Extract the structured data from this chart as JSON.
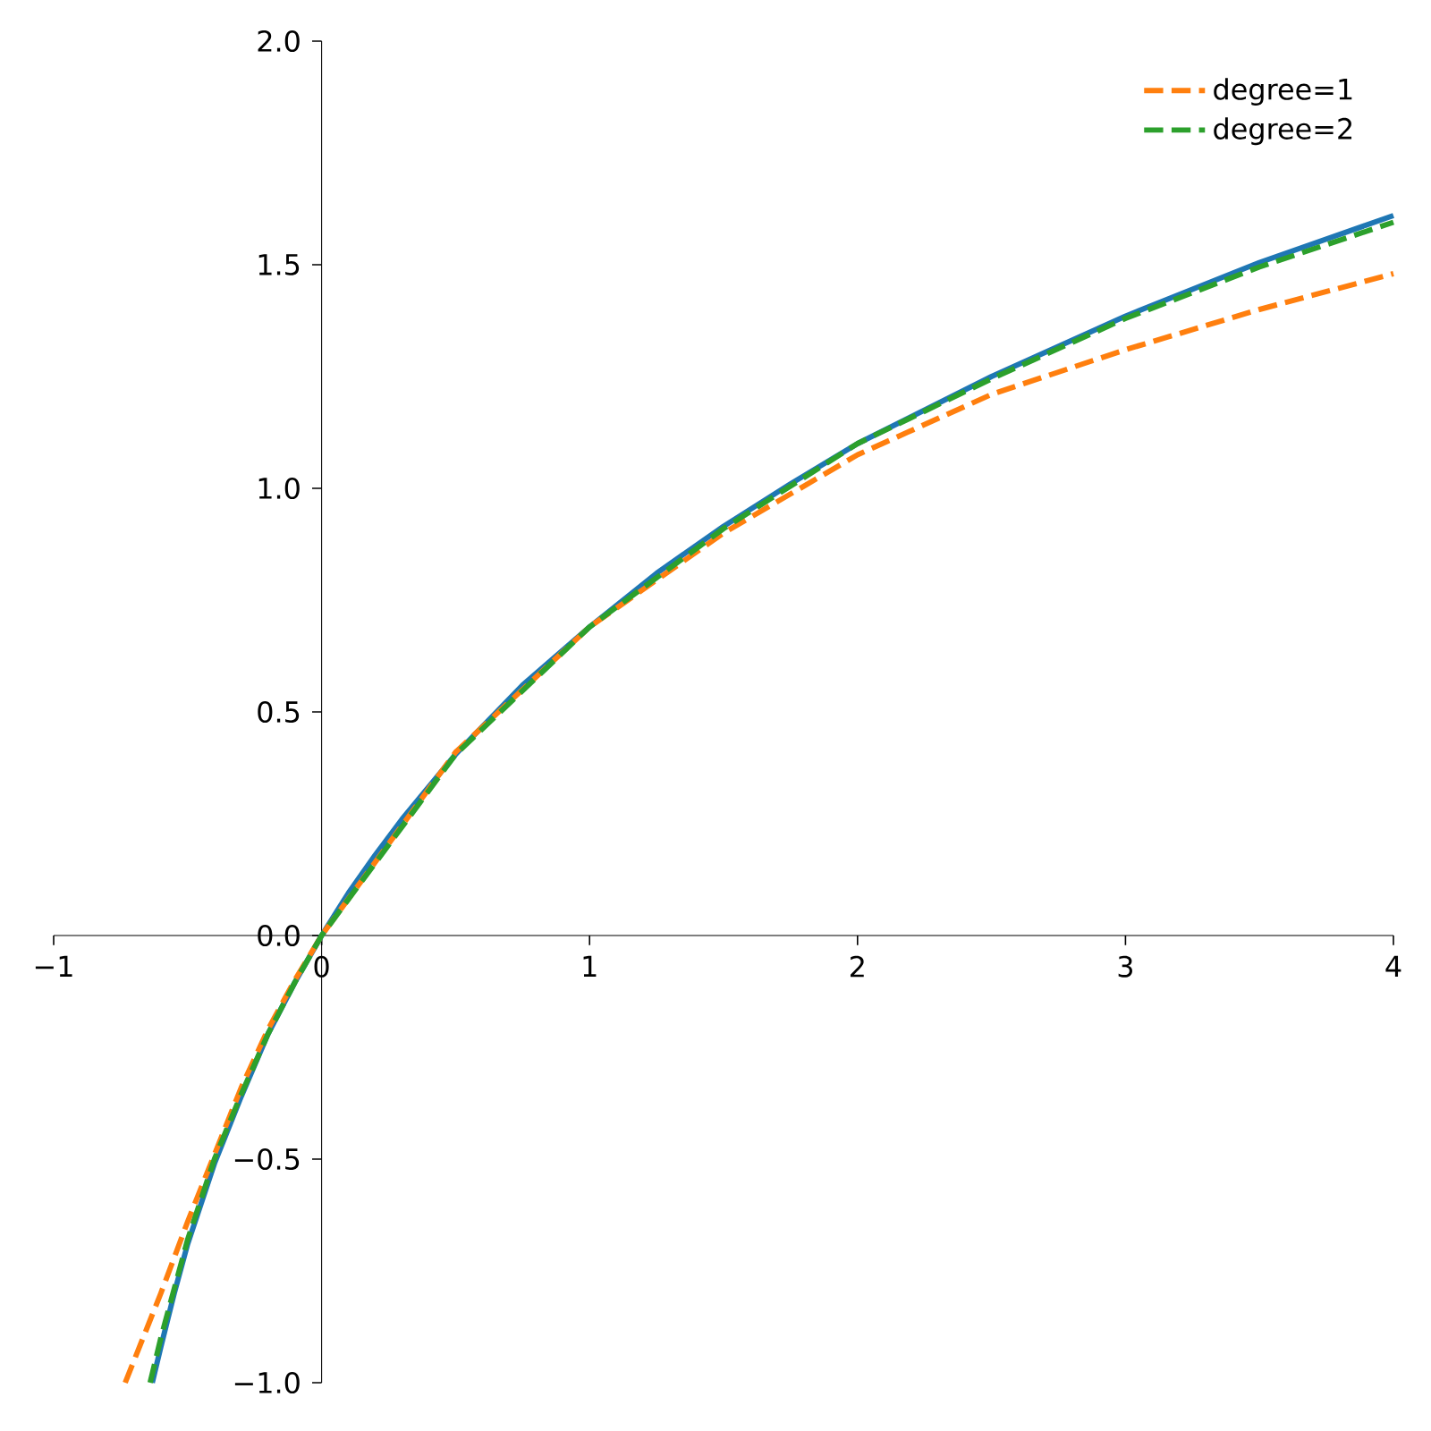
{
  "chart_data": {
    "type": "line",
    "xlim": [
      -1,
      4
    ],
    "ylim": [
      -1,
      2
    ],
    "xticks": [
      {
        "value": -1,
        "label": "−1"
      },
      {
        "value": 0,
        "label": "0"
      },
      {
        "value": 1,
        "label": "1"
      },
      {
        "value": 2,
        "label": "2"
      },
      {
        "value": 3,
        "label": "3"
      },
      {
        "value": 4,
        "label": "4"
      }
    ],
    "yticks": [
      {
        "value": -1,
        "label": "−1.0"
      },
      {
        "value": -0.5,
        "label": "−0.5"
      },
      {
        "value": 0,
        "label": "0.0"
      },
      {
        "value": 0.5,
        "label": "0.5"
      },
      {
        "value": 1,
        "label": "1.0"
      },
      {
        "value": 1.5,
        "label": "1.5"
      },
      {
        "value": 2,
        "label": "2.0"
      }
    ],
    "legend": "top right",
    "grid": false,
    "series": [
      {
        "color": "#1f77b4",
        "line_style": "solid",
        "x": [
          -0.632,
          -0.6,
          -0.55,
          -0.5,
          -0.45,
          -0.4,
          -0.3,
          -0.2,
          -0.1,
          0,
          0.1,
          0.2,
          0.3,
          0.5,
          0.75,
          1,
          1.25,
          1.5,
          1.75,
          2,
          2.5,
          3,
          3.5,
          4
        ],
        "values": [
          -1.0,
          -0.92,
          -0.8,
          -0.69,
          -0.6,
          -0.51,
          -0.36,
          -0.22,
          -0.105,
          0,
          0.095,
          0.18,
          0.26,
          0.405,
          0.56,
          0.69,
          0.81,
          0.915,
          1.01,
          1.1,
          1.25,
          1.385,
          1.505,
          1.61
        ]
      },
      {
        "name": "degree=1",
        "color": "#ff7f0e",
        "line_style": "dashed",
        "x": [
          -0.733,
          -0.6,
          -0.5,
          -0.4,
          -0.3,
          -0.2,
          -0.1,
          0,
          0.5,
          1,
          1.5,
          2,
          2.5,
          3,
          3.5,
          4
        ],
        "values": [
          -1.0,
          -0.8,
          -0.64,
          -0.49,
          -0.34,
          -0.21,
          -0.1,
          0,
          0.41,
          0.69,
          0.9,
          1.075,
          1.21,
          1.31,
          1.4,
          1.48
        ]
      },
      {
        "name": "degree=2",
        "color": "#2ca02c",
        "line_style": "dashed",
        "x": [
          -0.64,
          -0.6,
          -0.5,
          -0.4,
          -0.3,
          -0.2,
          -0.1,
          0,
          0.5,
          1,
          1.5,
          2,
          2.5,
          3,
          3.5,
          4
        ],
        "values": [
          -1.0,
          -0.9,
          -0.68,
          -0.5,
          -0.355,
          -0.22,
          -0.105,
          0,
          0.405,
          0.69,
          0.91,
          1.1,
          1.245,
          1.38,
          1.495,
          1.595
        ]
      }
    ]
  }
}
